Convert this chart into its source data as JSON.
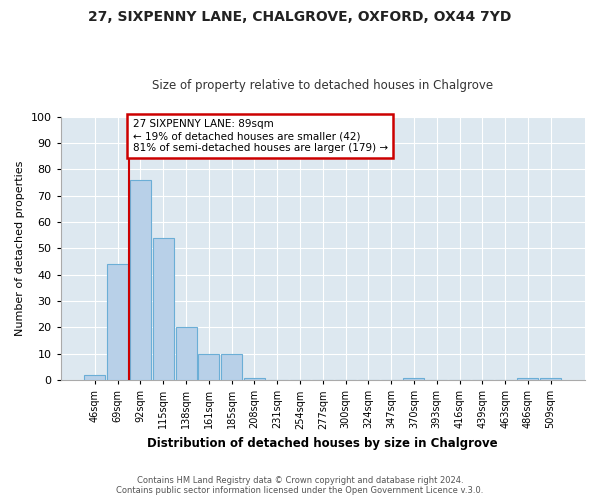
{
  "title_line1": "27, SIXPENNY LANE, CHALGROVE, OXFORD, OX44 7YD",
  "title_line2": "Size of property relative to detached houses in Chalgrove",
  "xlabel": "Distribution of detached houses by size in Chalgrove",
  "ylabel": "Number of detached properties",
  "bar_labels": [
    "46sqm",
    "69sqm",
    "92sqm",
    "115sqm",
    "138sqm",
    "161sqm",
    "185sqm",
    "208sqm",
    "231sqm",
    "254sqm",
    "277sqm",
    "300sqm",
    "324sqm",
    "347sqm",
    "370sqm",
    "393sqm",
    "416sqm",
    "439sqm",
    "463sqm",
    "486sqm",
    "509sqm"
  ],
  "bar_values": [
    2,
    44,
    76,
    54,
    20,
    10,
    10,
    1,
    0,
    0,
    0,
    0,
    0,
    0,
    1,
    0,
    0,
    0,
    0,
    1,
    1
  ],
  "bar_color": "#b8d0e8",
  "bar_edge_color": "#6baed6",
  "annotation_line1": "27 SIXPENNY LANE: 89sqm",
  "annotation_line2": "← 19% of detached houses are smaller (42)",
  "annotation_line3": "81% of semi-detached houses are larger (179) →",
  "annotation_box_facecolor": "#ffffff",
  "annotation_box_edgecolor": "#cc0000",
  "vline_color": "#cc0000",
  "ylim": [
    0,
    100
  ],
  "yticks": [
    0,
    10,
    20,
    30,
    40,
    50,
    60,
    70,
    80,
    90,
    100
  ],
  "fig_bg_color": "#ffffff",
  "plot_bg_color": "#dde8f0",
  "grid_color": "#ffffff",
  "footer_line1": "Contains HM Land Registry data © Crown copyright and database right 2024.",
  "footer_line2": "Contains public sector information licensed under the Open Government Licence v.3.0.",
  "bar_width": 0.92
}
